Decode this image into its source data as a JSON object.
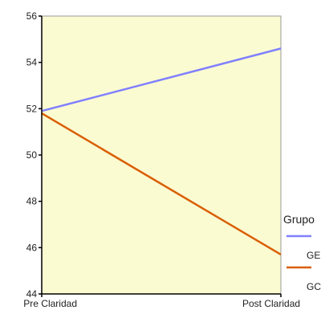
{
  "chart_data": {
    "type": "line",
    "categories": [
      "Pre Claridad",
      "Post Claridad"
    ],
    "yticks": [
      "44",
      "46",
      "48",
      "50",
      "52",
      "54",
      "56"
    ],
    "ylim": [
      44,
      56
    ],
    "series": [
      {
        "name": "GE",
        "values": [
          51.9,
          54.6
        ],
        "color": "#8080ff"
      },
      {
        "name": "GC",
        "values": [
          51.8,
          45.7
        ],
        "color": "#d95f02"
      }
    ],
    "legend": {
      "title": "Grupo",
      "placement": "bottom-right"
    },
    "plot_background": "#fbfbd2"
  }
}
